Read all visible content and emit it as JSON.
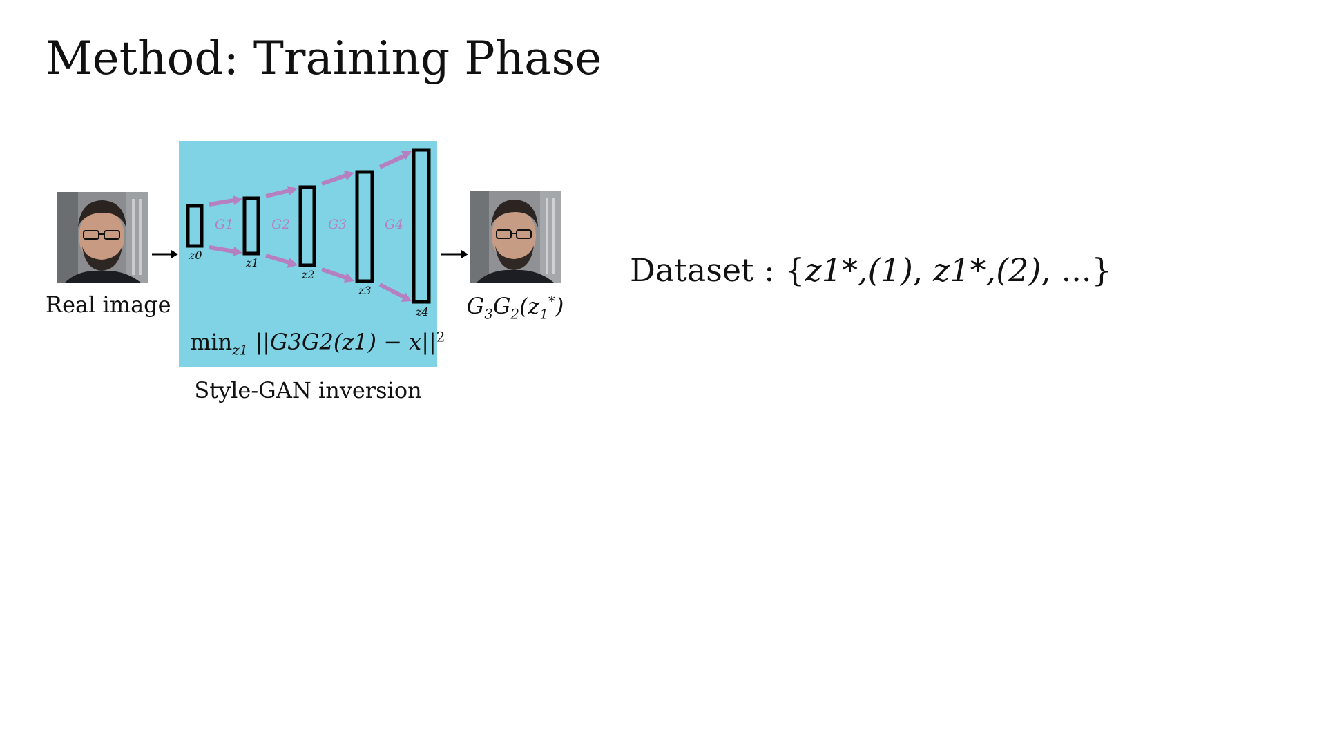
{
  "slide": {
    "title": "Method: Training Phase"
  },
  "left": {
    "real_image_label": "Real image",
    "output_label_prefix": "G",
    "output_label": [
      "G",
      "3",
      "G",
      "2",
      "(z",
      "1",
      "*",
      ")"
    ]
  },
  "diagram": {
    "caption": "Style-GAN inversion",
    "generators": [
      "G1",
      "G2",
      "G3",
      "G4"
    ],
    "latents": [
      "z0",
      "z1",
      "z2",
      "z3",
      "z4"
    ],
    "loss": {
      "min": "min",
      "min_sub": "z1",
      "expr": "||G3G2(z1) − x||",
      "power": "2"
    },
    "colors": {
      "panel": "#80d3e5",
      "arrow": "#b57fc0",
      "layer_stroke": "#000000"
    }
  },
  "dataset": {
    "label": "Dataset : ",
    "items": [
      "z1*,(1)",
      "z1*,(2)",
      "..."
    ]
  },
  "images": {
    "input": "face-photo",
    "output": "reconstructed-face-photo"
  }
}
